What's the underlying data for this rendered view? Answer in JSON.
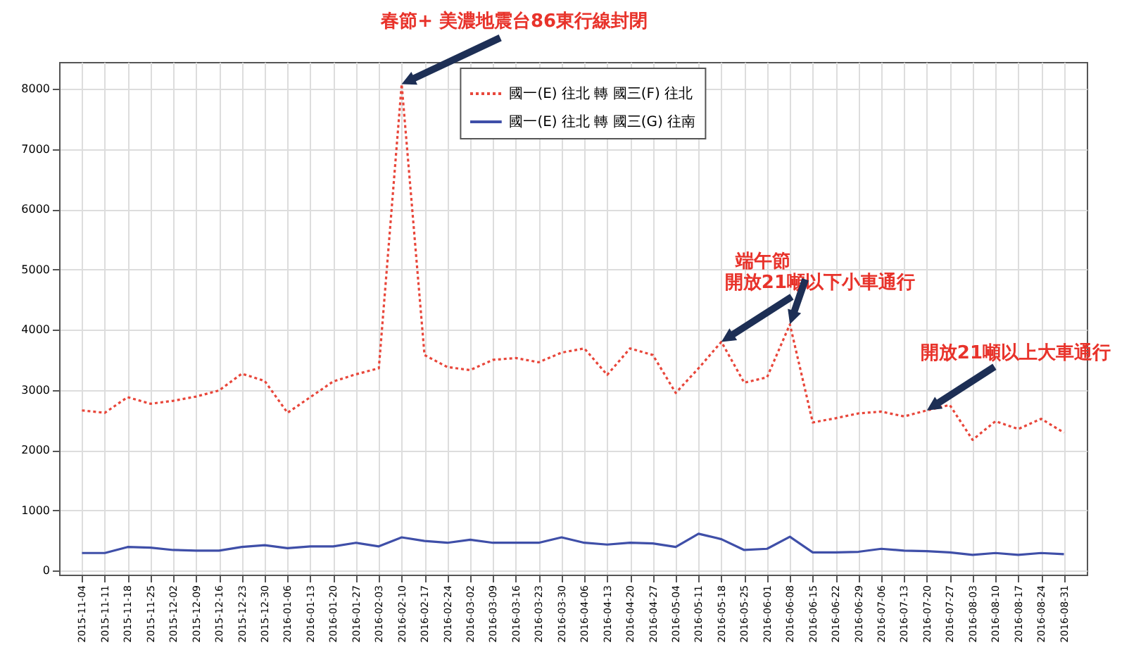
{
  "chart_data": {
    "type": "line",
    "categories": [
      "2015-11-04",
      "2015-11-11",
      "2015-11-18",
      "2015-11-25",
      "2015-12-02",
      "2015-12-09",
      "2015-12-16",
      "2015-12-23",
      "2015-12-30",
      "2016-01-06",
      "2016-01-13",
      "2016-01-20",
      "2016-01-27",
      "2016-02-03",
      "2016-02-10",
      "2016-02-17",
      "2016-02-24",
      "2016-03-02",
      "2016-03-09",
      "2016-03-16",
      "2016-03-23",
      "2016-03-30",
      "2016-04-06",
      "2016-04-13",
      "2016-04-20",
      "2016-04-27",
      "2016-05-04",
      "2016-05-11",
      "2016-05-18",
      "2016-05-25",
      "2016-06-01",
      "2016-06-08",
      "2016-06-15",
      "2016-06-22",
      "2016-06-29",
      "2016-07-06",
      "2016-07-13",
      "2016-07-20",
      "2016-07-27",
      "2016-08-03",
      "2016-08-10",
      "2016-08-17",
      "2016-08-24",
      "2016-08-31"
    ],
    "series": [
      {
        "name": "國一(E) 往北 轉 國三(F) 往北",
        "color": "#e8463a",
        "line_style": "dotted",
        "values": [
          2660,
          2620,
          2880,
          2770,
          2820,
          2890,
          2990,
          3270,
          3150,
          2620,
          2880,
          3140,
          3260,
          3360,
          8080,
          3580,
          3380,
          3330,
          3500,
          3530,
          3460,
          3620,
          3690,
          3250,
          3690,
          3580,
          2950,
          3360,
          3800,
          3120,
          3210,
          4090,
          2460,
          2530,
          2610,
          2640,
          2560,
          2660,
          2750,
          2170,
          2480,
          2350,
          2520,
          2290
        ]
      },
      {
        "name": "國一(E) 往北 轉 國三(G) 往南",
        "color": "#3f4fa8",
        "line_style": "solid",
        "values": [
          290,
          290,
          390,
          380,
          340,
          330,
          330,
          390,
          420,
          370,
          400,
          400,
          460,
          400,
          550,
          490,
          460,
          510,
          460,
          460,
          460,
          550,
          460,
          430,
          460,
          450,
          390,
          610,
          520,
          340,
          360,
          560,
          300,
          300,
          310,
          360,
          330,
          320,
          300,
          260,
          290,
          260,
          290,
          270
        ]
      }
    ],
    "ylim": [
      -70,
      8450
    ],
    "yticks": [
      0,
      1000,
      2000,
      3000,
      4000,
      5000,
      6000,
      7000,
      8000
    ],
    "grid": true,
    "legend": "top",
    "marker": "none",
    "annotations": [
      {
        "text": "春節+ 美濃地震台86東行線封閉",
        "x": "2016-02-10",
        "y": 8080
      },
      {
        "text": "端午節",
        "x": "2016-06-08",
        "y": 4090
      },
      {
        "text": "開放21噸以下小車通行",
        "x": "2016-05-18",
        "y": 3800
      },
      {
        "text": "開放21噸以上大車通行",
        "x": "2016-07-20",
        "y": 2660
      }
    ]
  }
}
